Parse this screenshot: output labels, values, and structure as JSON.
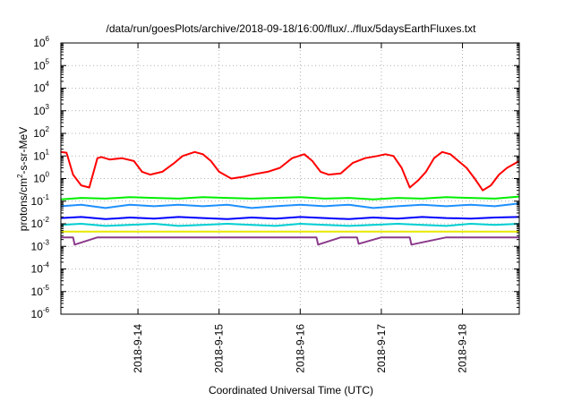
{
  "chart_data": {
    "type": "line",
    "title": "/data/run/goesPlots/archive/2018-09-18/16:00/flux/../flux/5daysEarthFluxes.txt",
    "xlabel": "Coordinated Universal Time (UTC)",
    "ylabel": {
      "prefix": "protons/cm",
      "sup": "2",
      "suffix": "-s-sr-MeV"
    },
    "yscale": "log",
    "ylim": [
      1e-06,
      1000000.0
    ],
    "y_ticks": [
      {
        "base": "10",
        "exp": "-6",
        "value": -6
      },
      {
        "base": "10",
        "exp": "-5",
        "value": -5
      },
      {
        "base": "10",
        "exp": "-4",
        "value": -4
      },
      {
        "base": "10",
        "exp": "-3",
        "value": -3
      },
      {
        "base": "10",
        "exp": "-2",
        "value": -2
      },
      {
        "base": "10",
        "exp": "-1",
        "value": -1
      },
      {
        "base": "10",
        "exp": "0",
        "value": 0
      },
      {
        "base": "10",
        "exp": "1",
        "value": 1
      },
      {
        "base": "10",
        "exp": "2",
        "value": 2
      },
      {
        "base": "10",
        "exp": "3",
        "value": 3
      },
      {
        "base": "10",
        "exp": "4",
        "value": 4
      },
      {
        "base": "10",
        "exp": "5",
        "value": 5
      },
      {
        "base": "10",
        "exp": "6",
        "value": 6
      }
    ],
    "xlim": [
      13.05,
      18.7
    ],
    "x_ticks": [
      {
        "label": "2018-9-14",
        "value": 14
      },
      {
        "label": "2018-9-15",
        "value": 15
      },
      {
        "label": "2018-9-16",
        "value": 16
      },
      {
        "label": "2018-9-17",
        "value": 17
      },
      {
        "label": "2018-9-18",
        "value": 18
      }
    ],
    "grid": true,
    "series": [
      {
        "color": "#ff0000",
        "x": [
          13.05,
          13.12,
          13.2,
          13.3,
          13.4,
          13.5,
          13.55,
          13.65,
          13.8,
          13.95,
          14.05,
          14.15,
          14.3,
          14.45,
          14.55,
          14.7,
          14.8,
          14.9,
          15.0,
          15.15,
          15.3,
          15.45,
          15.6,
          15.75,
          15.9,
          16.05,
          16.15,
          16.25,
          16.35,
          16.5,
          16.65,
          16.8,
          16.95,
          17.05,
          17.15,
          17.25,
          17.35,
          17.45,
          17.55,
          17.65,
          17.75,
          17.85,
          17.95,
          18.05,
          18.15,
          18.25,
          18.35,
          18.45,
          18.55,
          18.7
        ],
        "y": [
          15,
          14,
          1.5,
          0.5,
          0.4,
          8,
          9,
          7,
          8,
          6,
          2,
          1.5,
          2,
          5,
          10,
          15,
          12,
          6,
          2,
          1,
          1.2,
          1.6,
          2,
          3,
          8,
          12,
          6,
          2,
          1.5,
          1.7,
          5,
          8,
          10,
          12,
          10,
          3,
          0.4,
          0.8,
          2,
          8,
          15,
          12,
          6,
          3,
          1,
          0.3,
          0.5,
          1.5,
          3,
          6
        ]
      },
      {
        "color": "#00ee00",
        "x": [
          13.05,
          13.3,
          13.6,
          13.9,
          14.2,
          14.5,
          14.8,
          15.1,
          15.4,
          15.7,
          16.0,
          16.3,
          16.6,
          16.9,
          17.2,
          17.5,
          17.8,
          18.1,
          18.4,
          18.7
        ],
        "y": [
          0.12,
          0.14,
          0.13,
          0.15,
          0.14,
          0.13,
          0.15,
          0.14,
          0.13,
          0.14,
          0.15,
          0.13,
          0.14,
          0.12,
          0.14,
          0.13,
          0.15,
          0.14,
          0.13,
          0.16
        ]
      },
      {
        "color": "#1e90ff",
        "x": [
          13.05,
          13.3,
          13.6,
          13.9,
          14.2,
          14.5,
          14.8,
          15.1,
          15.4,
          15.7,
          16.0,
          16.3,
          16.6,
          16.9,
          17.2,
          17.5,
          17.8,
          18.1,
          18.4,
          18.7
        ],
        "y": [
          0.06,
          0.07,
          0.05,
          0.07,
          0.06,
          0.07,
          0.06,
          0.07,
          0.05,
          0.06,
          0.07,
          0.06,
          0.07,
          0.05,
          0.06,
          0.07,
          0.06,
          0.07,
          0.06,
          0.08
        ]
      },
      {
        "color": "#0000ff",
        "x": [
          13.05,
          13.3,
          13.6,
          13.9,
          14.2,
          14.5,
          14.8,
          15.1,
          15.4,
          15.7,
          16.0,
          16.3,
          16.6,
          16.9,
          17.2,
          17.5,
          17.8,
          18.1,
          18.4,
          18.7
        ],
        "y": [
          0.018,
          0.02,
          0.016,
          0.019,
          0.017,
          0.02,
          0.018,
          0.016,
          0.019,
          0.017,
          0.02,
          0.018,
          0.016,
          0.019,
          0.017,
          0.02,
          0.018,
          0.017,
          0.019,
          0.02
        ]
      },
      {
        "color": "#00ced1",
        "x": [
          13.05,
          13.3,
          13.6,
          13.9,
          14.2,
          14.5,
          14.8,
          15.1,
          15.4,
          15.7,
          16.0,
          16.3,
          16.6,
          16.9,
          17.2,
          17.5,
          17.8,
          18.1,
          18.4,
          18.7
        ],
        "y": [
          0.009,
          0.01,
          0.008,
          0.009,
          0.01,
          0.008,
          0.009,
          0.01,
          0.009,
          0.008,
          0.01,
          0.009,
          0.008,
          0.009,
          0.01,
          0.009,
          0.008,
          0.01,
          0.009,
          0.01
        ]
      },
      {
        "color": "#e8e800",
        "x": [
          13.05,
          13.3,
          13.6,
          13.9,
          14.2,
          14.5,
          14.8,
          15.1,
          15.4,
          15.7,
          16.0,
          16.3,
          16.6,
          16.9,
          17.2,
          17.5,
          17.8,
          18.1,
          18.4,
          18.7
        ],
        "y": [
          0.0045,
          0.0045,
          0.0045,
          0.0045,
          0.0045,
          0.0045,
          0.0045,
          0.0045,
          0.0045,
          0.0045,
          0.0045,
          0.0045,
          0.0045,
          0.0045,
          0.0045,
          0.0045,
          0.0045,
          0.0045,
          0.0045,
          0.0045
        ]
      },
      {
        "color": "#8b3a8b",
        "x": [
          13.05,
          13.2,
          13.22,
          13.5,
          14.0,
          14.5,
          14.8,
          15.0,
          15.5,
          16.0,
          16.2,
          16.22,
          16.5,
          16.7,
          16.72,
          17.0,
          17.35,
          17.37,
          17.8,
          18.2,
          18.7
        ],
        "y": [
          0.0025,
          0.0025,
          0.0012,
          0.0025,
          0.0025,
          0.0025,
          0.0025,
          0.0025,
          0.0025,
          0.0025,
          0.0025,
          0.0012,
          0.0025,
          0.0025,
          0.0013,
          0.0025,
          0.0025,
          0.0012,
          0.0025,
          0.0025,
          0.0025
        ]
      }
    ]
  }
}
